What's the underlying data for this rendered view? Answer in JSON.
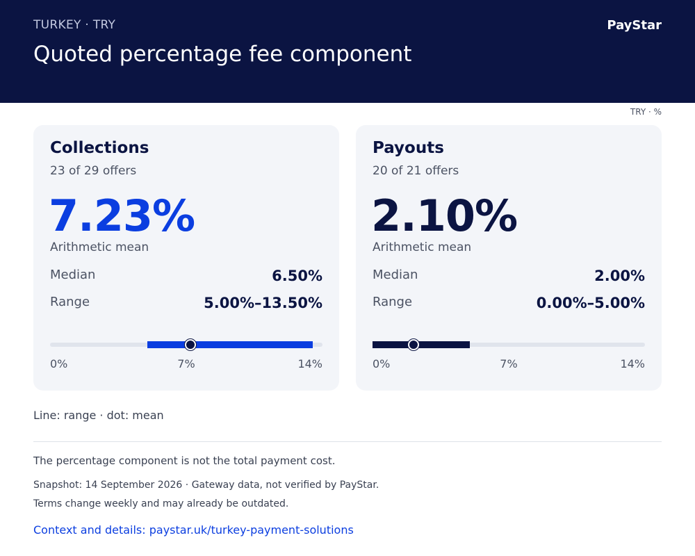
{
  "header": {
    "eyebrow": "TURKEY · TRY",
    "title": "Quoted percentage fee component",
    "brand": "PayStar"
  },
  "unit_label": "TRY · %",
  "chart_data": [
    {
      "type": "range",
      "title": "Collections",
      "subtitle": "23 of 29 offers",
      "mean": 7.23,
      "mean_text": "7.23%",
      "mean_label": "Arithmetic mean",
      "median": 6.5,
      "median_text": "6.50%",
      "median_label": "Median",
      "range": [
        5.0,
        13.5
      ],
      "range_text": "5.00%–13.50%",
      "range_label": "Range",
      "xlim": [
        0,
        14
      ],
      "ticks": [
        "0%",
        "7%",
        "14%"
      ],
      "color": "#0b3ee0"
    },
    {
      "type": "range",
      "title": "Payouts",
      "subtitle": "20 of 21 offers",
      "mean": 2.1,
      "mean_text": "2.10%",
      "mean_label": "Arithmetic mean",
      "median": 2.0,
      "median_text": "2.00%",
      "median_label": "Median",
      "range": [
        0.0,
        5.0
      ],
      "range_text": "0.00%–5.00%",
      "range_label": "Range",
      "xlim": [
        0,
        14
      ],
      "ticks": [
        "0%",
        "7%",
        "14%"
      ],
      "color": "#0b1442"
    }
  ],
  "legend": "Line: range · dot: mean",
  "footer": {
    "note": "The percentage component is not the total payment cost.",
    "snapshot": "Snapshot: 14 September 2026 · Gateway data, not verified by PayStar.",
    "disclaimer": "Terms change weekly and may already be outdated.",
    "link": "Context and details: paystar.uk/turkey-payment-solutions"
  }
}
